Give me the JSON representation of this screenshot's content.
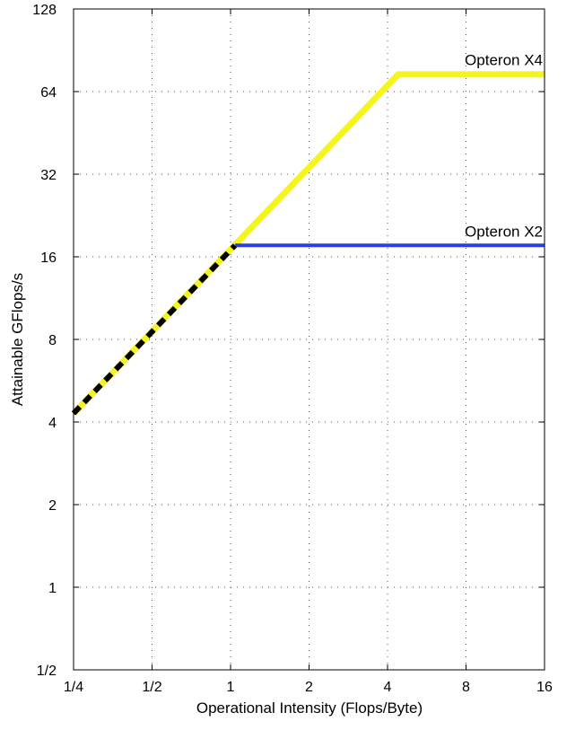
{
  "chart_data": {
    "type": "line",
    "xlabel": "Operational Intensity (Flops/Byte)",
    "ylabel": "Attainable GFlops/s",
    "x_scale": "log2",
    "y_scale": "log2",
    "xlim": [
      0.25,
      16
    ],
    "ylim": [
      0.5,
      128
    ],
    "x_ticks": [
      0.25,
      0.5,
      1,
      2,
      4,
      8,
      16
    ],
    "x_tick_labels": [
      "1/4",
      "1/2",
      "1",
      "2",
      "4",
      "8",
      "16"
    ],
    "y_ticks": [
      0.5,
      1,
      2,
      4,
      8,
      16,
      32,
      64,
      128
    ],
    "y_tick_labels": [
      "1/2",
      "1",
      "2",
      "4",
      "8",
      "16",
      "32",
      "64",
      "128"
    ],
    "grid": true,
    "series": [
      {
        "name": "Opteron X4",
        "color": "#f5f51e",
        "style": "solid",
        "x": [
          0.25,
          4.4,
          16
        ],
        "y": [
          4.3,
          74,
          74
        ]
      },
      {
        "name": "Opteron X2",
        "color": "#2b3fe6",
        "style": "solid",
        "x": [
          1.04,
          16
        ],
        "y": [
          17.6,
          17.6
        ]
      },
      {
        "name": "",
        "color": "#000000",
        "style": "dashed",
        "x": [
          0.25,
          1.04
        ],
        "y": [
          4.3,
          17.6
        ]
      }
    ]
  }
}
